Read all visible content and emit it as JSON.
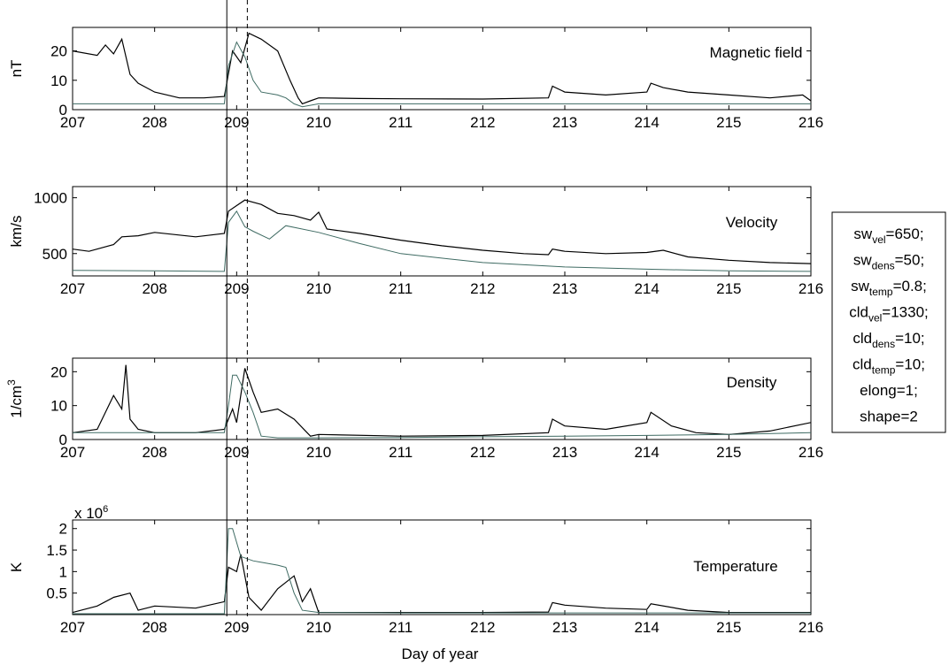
{
  "figure": {
    "xlabel": "Day of year",
    "event_lines": [
      {
        "x": 208.88,
        "style": "solid"
      },
      {
        "x": 209.13,
        "style": "dashed"
      }
    ],
    "colors": {
      "observed": "#000000",
      "model": "#3f6b63",
      "axes": "#000000"
    }
  },
  "legend": {
    "lines": [
      {
        "base": "sw",
        "sub": "vel",
        "value": "=650;"
      },
      {
        "base": "sw",
        "sub": "dens",
        "value": "=50;"
      },
      {
        "base": "sw",
        "sub": "temp",
        "value": "=0.8;"
      },
      {
        "base": "cld",
        "sub": "vel",
        "value": "=1330;"
      },
      {
        "base": "cld",
        "sub": "dens",
        "value": "=10;"
      },
      {
        "base": "cld",
        "sub": "temp",
        "value": "=10;"
      },
      {
        "base": "",
        "sub": "",
        "value": "elong=1;"
      },
      {
        "base": "",
        "sub": "",
        "value": "shape=2"
      }
    ]
  },
  "chart_data": [
    {
      "type": "line",
      "title": "Magnetic field",
      "ylabel": "nT",
      "xlim": [
        207,
        216
      ],
      "ylim": [
        0,
        28
      ],
      "xticks": [
        207,
        208,
        209,
        210,
        211,
        212,
        213,
        214,
        215,
        216
      ],
      "yticks": [
        0,
        10,
        20
      ],
      "series": [
        {
          "role": "observed",
          "x": [
            207,
            207.3,
            207.4,
            207.5,
            207.6,
            207.7,
            207.8,
            208.0,
            208.3,
            208.6,
            208.85,
            208.95,
            209.05,
            209.15,
            209.3,
            209.5,
            209.65,
            209.75,
            209.8,
            209.9,
            210.0,
            210.5,
            211.0,
            212.0,
            212.8,
            212.85,
            213.0,
            213.5,
            214.0,
            214.05,
            214.2,
            214.5,
            215.0,
            215.5,
            215.9,
            216.0
          ],
          "y": [
            20,
            18.5,
            22,
            19,
            24,
            12,
            9,
            6,
            4,
            4,
            4.5,
            20,
            16,
            26,
            24,
            20,
            10,
            4,
            2,
            3,
            4,
            3.8,
            3.7,
            3.6,
            4,
            8,
            6,
            5,
            6,
            9,
            7.5,
            6,
            5,
            4,
            5,
            3
          ]
        },
        {
          "role": "model",
          "x": [
            207,
            208,
            208.85,
            208.9,
            209.0,
            209.1,
            209.2,
            209.3,
            209.5,
            209.6,
            209.7,
            209.8,
            210.0,
            211.0,
            212.0,
            213.0,
            214.0,
            215.0,
            216.0
          ],
          "y": [
            2,
            2,
            2,
            15,
            23,
            18,
            10,
            6,
            5,
            4,
            2,
            1,
            2,
            2,
            2,
            2,
            2,
            2,
            2
          ]
        }
      ]
    },
    {
      "type": "line",
      "title": "Velocity",
      "ylabel": "km/s",
      "xlim": [
        207,
        216
      ],
      "ylim": [
        300,
        1100
      ],
      "xticks": [
        207,
        208,
        209,
        210,
        211,
        212,
        213,
        214,
        215,
        216
      ],
      "yticks": [
        500,
        1000
      ],
      "series": [
        {
          "role": "observed",
          "x": [
            207,
            207.2,
            207.5,
            207.6,
            207.8,
            208.0,
            208.5,
            208.85,
            208.9,
            209.0,
            209.1,
            209.3,
            209.5,
            209.7,
            209.9,
            210.0,
            210.1,
            210.5,
            211.0,
            211.5,
            212.0,
            212.5,
            212.8,
            212.85,
            213.0,
            213.5,
            214.0,
            214.2,
            214.5,
            215.0,
            215.5,
            216.0
          ],
          "y": [
            540,
            520,
            580,
            650,
            660,
            690,
            650,
            680,
            880,
            930,
            980,
            940,
            860,
            840,
            800,
            870,
            720,
            680,
            620,
            570,
            530,
            500,
            490,
            540,
            520,
            500,
            510,
            530,
            470,
            440,
            420,
            410
          ]
        },
        {
          "role": "model",
          "x": [
            207,
            208,
            208.8,
            208.85,
            208.9,
            209.0,
            209.1,
            209.2,
            209.4,
            209.6,
            210.0,
            210.5,
            211.0,
            212.0,
            213.0,
            214.0,
            215.0,
            216.0
          ],
          "y": [
            350,
            345,
            340,
            340,
            780,
            880,
            740,
            700,
            630,
            750,
            690,
            590,
            500,
            420,
            380,
            360,
            345,
            340
          ]
        }
      ]
    },
    {
      "type": "line",
      "title": "Density",
      "ylabel": "1/cm3",
      "xlim": [
        207,
        216
      ],
      "ylim": [
        0,
        24
      ],
      "xticks": [
        207,
        208,
        209,
        210,
        211,
        212,
        213,
        214,
        215,
        216
      ],
      "yticks": [
        0,
        10,
        20
      ],
      "series": [
        {
          "role": "observed",
          "x": [
            207,
            207.3,
            207.5,
            207.6,
            207.65,
            207.7,
            207.8,
            208.0,
            208.5,
            208.85,
            208.95,
            209.0,
            209.1,
            209.2,
            209.3,
            209.5,
            209.7,
            209.9,
            210.0,
            211.0,
            212.0,
            212.8,
            212.85,
            213.0,
            213.5,
            214.0,
            214.05,
            214.3,
            214.6,
            215.0,
            215.5,
            216.0
          ],
          "y": [
            2,
            3,
            13,
            9,
            22,
            6,
            3,
            2,
            2,
            3,
            9,
            5,
            21,
            14,
            8,
            9,
            6,
            1,
            1.5,
            1,
            1.2,
            2,
            6,
            4,
            3,
            5,
            8,
            4,
            2,
            1.5,
            2.5,
            5
          ]
        },
        {
          "role": "model",
          "x": [
            207,
            208.0,
            208.85,
            208.9,
            208.95,
            209.0,
            209.1,
            209.2,
            209.3,
            209.5,
            210.0,
            211.0,
            212.0,
            213.0,
            214.0,
            215.0,
            216.0
          ],
          "y": [
            2,
            2,
            2,
            10,
            19,
            19,
            14,
            8,
            1,
            0.5,
            0.5,
            0.6,
            0.8,
            1,
            1.2,
            1.5,
            2
          ]
        }
      ]
    },
    {
      "type": "line",
      "title": "Temperature",
      "ylabel": "K",
      "ylabel_multiplier": "x 10",
      "ylabel_multiplier_exp": "6",
      "xlim": [
        207,
        216
      ],
      "ylim": [
        0,
        2.2
      ],
      "xticks": [
        207,
        208,
        209,
        210,
        211,
        212,
        213,
        214,
        215,
        216
      ],
      "yticks": [
        0.5,
        1,
        1.5,
        2
      ],
      "ytick_labels": [
        "0.5",
        "1",
        "1.5",
        "2"
      ],
      "series": [
        {
          "role": "observed",
          "x": [
            207,
            207.3,
            207.5,
            207.7,
            207.8,
            208.0,
            208.5,
            208.85,
            208.9,
            209.0,
            209.05,
            209.15,
            209.3,
            209.5,
            209.7,
            209.8,
            209.9,
            210.0,
            210.5,
            211.0,
            212.0,
            212.8,
            212.85,
            213.0,
            213.5,
            214.0,
            214.05,
            214.5,
            215.0,
            215.5,
            216.0
          ],
          "y": [
            0.05,
            0.2,
            0.4,
            0.5,
            0.1,
            0.2,
            0.15,
            0.3,
            1.1,
            1.0,
            1.4,
            0.4,
            0.1,
            0.6,
            0.9,
            0.3,
            0.6,
            0.05,
            0.05,
            0.05,
            0.05,
            0.06,
            0.28,
            0.22,
            0.15,
            0.12,
            0.25,
            0.1,
            0.05,
            0.05,
            0.05
          ]
        },
        {
          "role": "model",
          "x": [
            207,
            208.0,
            208.85,
            208.9,
            208.95,
            209.05,
            209.2,
            209.5,
            209.6,
            209.7,
            209.8,
            210.0,
            211.0,
            212.0,
            213.0,
            214.0,
            215.0,
            216.0
          ],
          "y": [
            0.02,
            0.02,
            0.02,
            2.0,
            2.0,
            1.35,
            1.25,
            1.15,
            1.1,
            0.5,
            0.1,
            0.05,
            0.04,
            0.04,
            0.04,
            0.04,
            0.04,
            0.04
          ]
        }
      ]
    }
  ]
}
